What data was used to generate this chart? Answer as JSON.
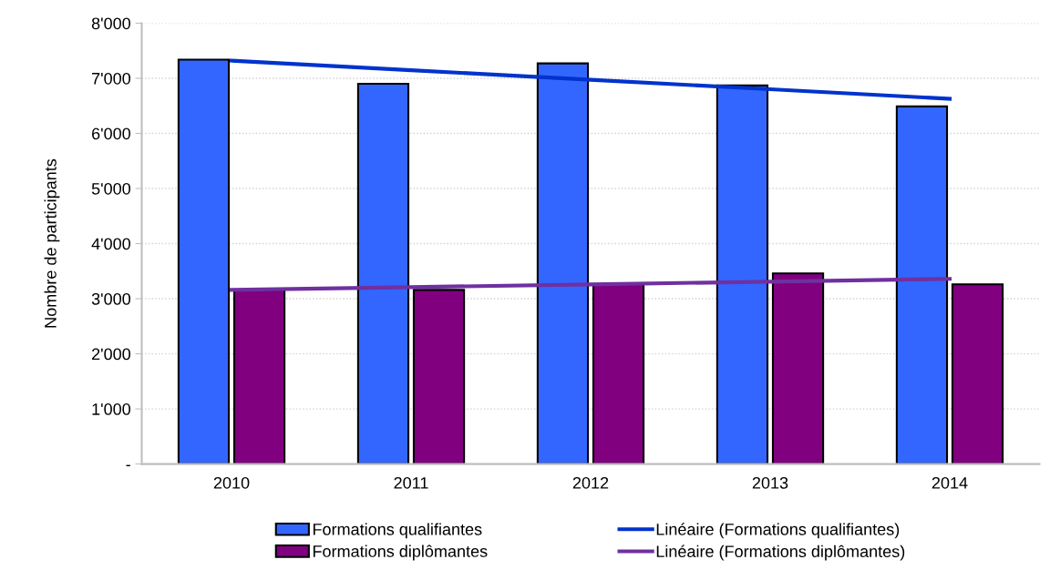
{
  "chart_data": {
    "type": "bar",
    "ylabel": "Nombre de participants",
    "categories": [
      "2010",
      "2011",
      "2012",
      "2013",
      "2014"
    ],
    "series": [
      {
        "name": "Formations qualifiantes",
        "color": "#3366ff",
        "values": [
          7340,
          6900,
          7270,
          6870,
          6490
        ]
      },
      {
        "name": "Formations diplômantes",
        "color": "#800080",
        "values": [
          3160,
          3160,
          3260,
          3460,
          3260
        ]
      },
      {
        "name": "Linéaire (Formations qualifiantes)",
        "type": "line",
        "color": "#0033cc",
        "values": [
          7320,
          7147,
          6974,
          6801,
          6628
        ]
      },
      {
        "name": "Linéaire (Formations diplômantes)",
        "type": "line",
        "color": "#7030a0",
        "values": [
          3160,
          3210,
          3260,
          3310,
          3360
        ]
      }
    ],
    "ylim": [
      0,
      8000
    ],
    "yticks": [
      {
        "value": 0,
        "label": "-"
      },
      {
        "value": 1000,
        "label": "1'000"
      },
      {
        "value": 2000,
        "label": "2'000"
      },
      {
        "value": 3000,
        "label": "3'000"
      },
      {
        "value": 4000,
        "label": "4'000"
      },
      {
        "value": 5000,
        "label": "5'000"
      },
      {
        "value": 6000,
        "label": "6'000"
      },
      {
        "value": 7000,
        "label": "7'000"
      },
      {
        "value": 8000,
        "label": "8'000"
      }
    ],
    "grid": "y",
    "legend": "bottom",
    "marker": "none",
    "line_style": "solid"
  }
}
